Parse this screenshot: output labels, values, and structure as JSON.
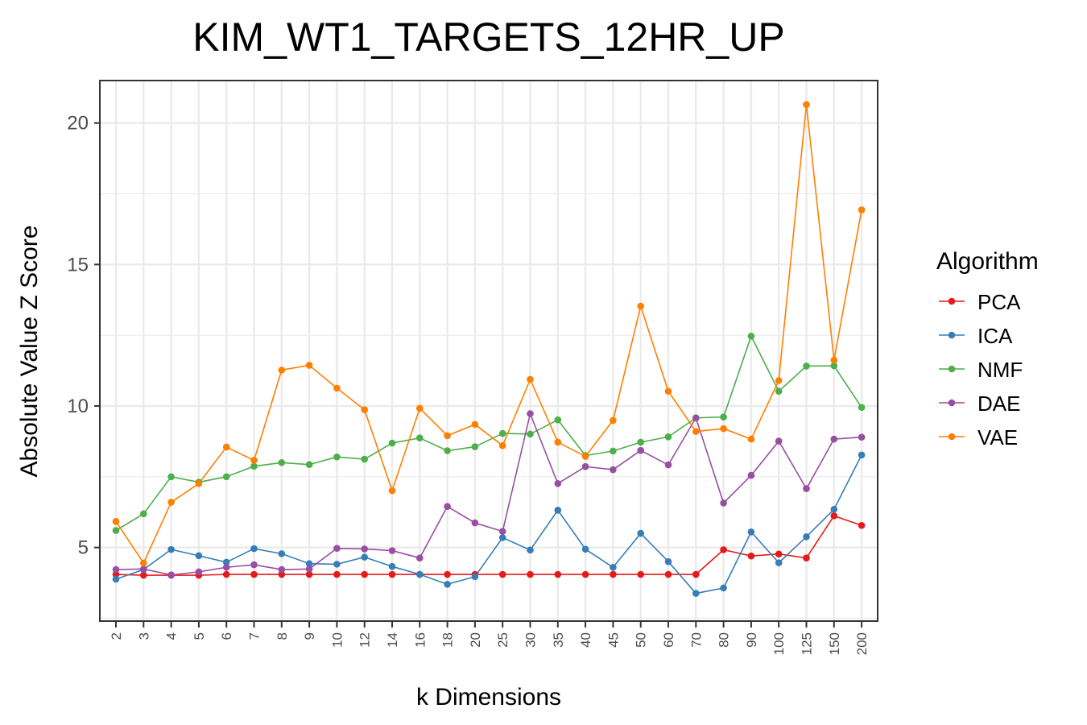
{
  "chart_data": {
    "type": "line",
    "title": "KIM_WT1_TARGETS_12HR_UP",
    "xlabel": "k Dimensions",
    "ylabel": "Absolute Value Z Score",
    "categories": [
      "2",
      "3",
      "4",
      "5",
      "6",
      "7",
      "8",
      "9",
      "10",
      "12",
      "14",
      "16",
      "18",
      "20",
      "25",
      "30",
      "35",
      "40",
      "45",
      "50",
      "60",
      "70",
      "80",
      "90",
      "100",
      "125",
      "150",
      "200"
    ],
    "ylim": [
      2.4,
      21.5
    ],
    "yticks": [
      5,
      10,
      15,
      20
    ],
    "grid": true,
    "legend_title": "Algorithm",
    "legend_position": "right",
    "series": [
      {
        "name": "PCA",
        "color": "#E41A1C",
        "values": [
          4.05,
          4.02,
          4.02,
          4.02,
          4.05,
          4.05,
          4.05,
          4.05,
          4.05,
          4.05,
          4.05,
          4.05,
          4.05,
          4.05,
          4.05,
          4.05,
          4.05,
          4.05,
          4.05,
          4.05,
          4.05,
          4.05,
          4.92,
          4.7,
          4.77,
          4.63,
          6.12,
          5.78
        ]
      },
      {
        "name": "ICA",
        "color": "#377EB8",
        "values": [
          3.88,
          4.22,
          4.93,
          4.71,
          4.48,
          4.96,
          4.78,
          4.43,
          4.41,
          4.66,
          4.33,
          4.05,
          3.7,
          3.97,
          5.35,
          4.91,
          6.32,
          4.94,
          4.3,
          5.5,
          4.5,
          3.38,
          3.57,
          5.55,
          4.46,
          5.38,
          6.35,
          8.27
        ]
      },
      {
        "name": "NMF",
        "color": "#4DAF4A",
        "values": [
          5.6,
          6.19,
          7.5,
          7.31,
          7.5,
          7.87,
          8.0,
          7.93,
          8.2,
          8.12,
          8.69,
          8.87,
          8.42,
          8.56,
          9.03,
          9.01,
          9.51,
          8.25,
          8.41,
          8.72,
          8.91,
          9.58,
          9.61,
          12.47,
          10.52,
          11.41,
          11.42,
          9.95
        ]
      },
      {
        "name": "DAE",
        "color": "#984EA3",
        "values": [
          4.22,
          4.24,
          4.03,
          4.14,
          4.3,
          4.39,
          4.22,
          4.24,
          4.97,
          4.95,
          4.89,
          4.63,
          6.45,
          5.87,
          5.57,
          9.73,
          7.26,
          7.86,
          7.75,
          8.43,
          7.92,
          9.58,
          6.57,
          7.55,
          8.76,
          7.08,
          8.83,
          8.9
        ]
      },
      {
        "name": "VAE",
        "color": "#FF7F00",
        "values": [
          5.92,
          4.45,
          6.6,
          7.26,
          8.55,
          8.08,
          11.27,
          11.44,
          10.63,
          9.87,
          7.01,
          9.92,
          8.95,
          9.35,
          8.6,
          10.94,
          8.72,
          8.22,
          9.49,
          13.53,
          10.52,
          9.1,
          9.2,
          8.83,
          10.9,
          20.65,
          11.62,
          16.93
        ]
      }
    ]
  }
}
